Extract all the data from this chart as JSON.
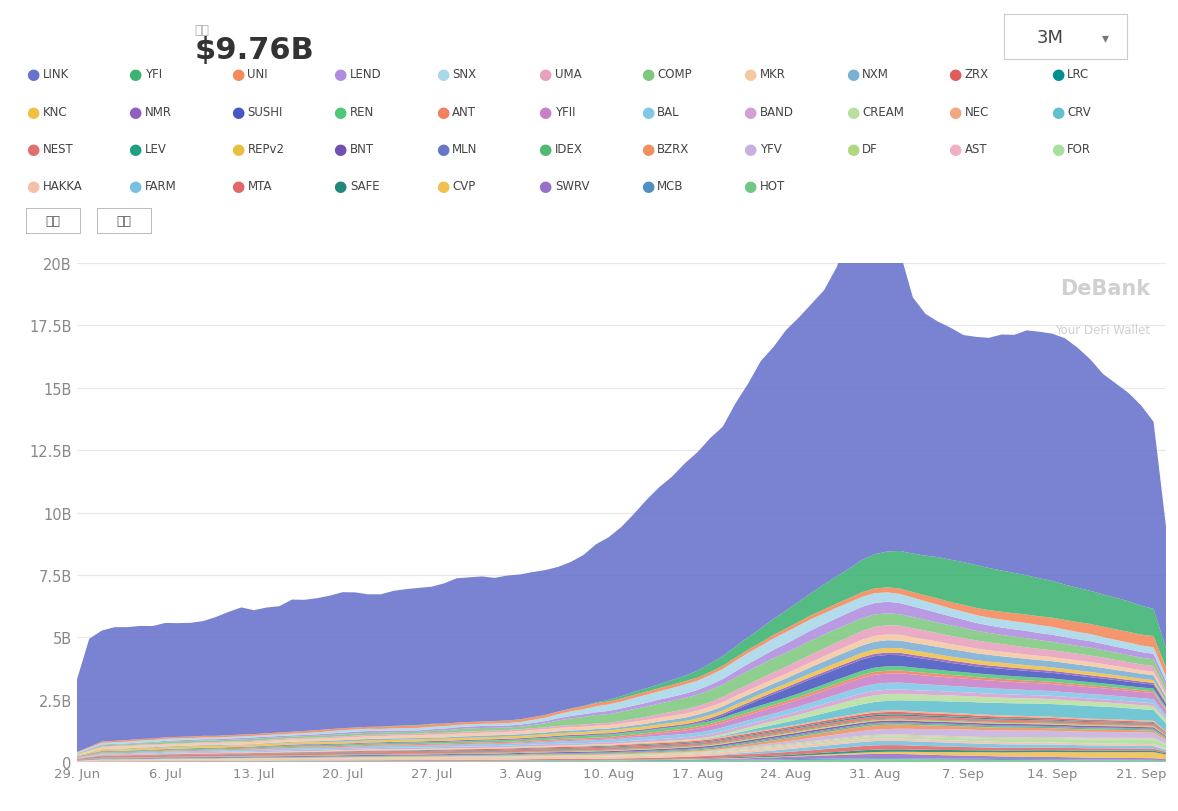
{
  "title_box": "市値",
  "subtitle_label": "市値",
  "subtitle_value": "$9.76B",
  "button_label1": "全选",
  "button_label2": "清空",
  "dropdown_label": "3M",
  "watermark_line1": "DeBank",
  "watermark_line2": "Your DeFi Wallet",
  "bg_color": "#ffffff",
  "ytick_labels": [
    "0",
    "2.5B",
    "5B",
    "7.5B",
    "10B",
    "12.5B",
    "15B",
    "17.5B",
    "20B"
  ],
  "ytick_values": [
    0,
    2.5,
    5.0,
    7.5,
    10.0,
    12.5,
    15.0,
    17.5,
    20.0
  ],
  "xtick_labels": [
    "29. Jun",
    "6. Jul",
    "13. Jul",
    "20. Jul",
    "27. Jul",
    "3. Aug",
    "10. Aug",
    "17. Aug",
    "24. Aug",
    "31. Aug",
    "7. Sep",
    "14. Sep",
    "21. Sep"
  ],
  "xtick_positions": [
    0,
    7,
    14,
    21,
    28,
    35,
    42,
    49,
    56,
    63,
    70,
    77,
    84
  ],
  "legend_items": [
    {
      "name": "LINK",
      "color": "#6672cc"
    },
    {
      "name": "YFI",
      "color": "#3cb371"
    },
    {
      "name": "UNI",
      "color": "#f4895a"
    },
    {
      "name": "LEND",
      "color": "#b08de0"
    },
    {
      "name": "SNX",
      "color": "#a8d8ea"
    },
    {
      "name": "UMA",
      "color": "#e8a0bf"
    },
    {
      "name": "COMP",
      "color": "#7ec87e"
    },
    {
      "name": "MKR",
      "color": "#f4c9a0"
    },
    {
      "name": "NXM",
      "color": "#7bafd4"
    },
    {
      "name": "ZRX",
      "color": "#e05c5c"
    },
    {
      "name": "LRC",
      "color": "#009090"
    },
    {
      "name": "KNC",
      "color": "#f0c040"
    },
    {
      "name": "NMR",
      "color": "#9060c0"
    },
    {
      "name": "SUSHI",
      "color": "#4858c0"
    },
    {
      "name": "REN",
      "color": "#50c878"
    },
    {
      "name": "ANT",
      "color": "#f08060"
    },
    {
      "name": "YFII",
      "color": "#c880c8"
    },
    {
      "name": "BAL",
      "color": "#80c8e8"
    },
    {
      "name": "BAND",
      "color": "#d4a0d4"
    },
    {
      "name": "CREAM",
      "color": "#b8e0a0"
    },
    {
      "name": "NEC",
      "color": "#f0a880"
    },
    {
      "name": "CRV",
      "color": "#60c0d0"
    },
    {
      "name": "NEST",
      "color": "#e07070"
    },
    {
      "name": "LEV",
      "color": "#20a080"
    },
    {
      "name": "REPv2",
      "color": "#e8c040"
    },
    {
      "name": "BNT",
      "color": "#7050b0"
    },
    {
      "name": "MLN",
      "color": "#6878c8"
    },
    {
      "name": "IDEX",
      "color": "#50b870"
    },
    {
      "name": "BZRX",
      "color": "#f09060"
    },
    {
      "name": "YFV",
      "color": "#c8b0e0"
    },
    {
      "name": "DF",
      "color": "#b0d880"
    },
    {
      "name": "AST",
      "color": "#f0b0c0"
    },
    {
      "name": "FOR",
      "color": "#a8e0a0"
    },
    {
      "name": "HAKKA",
      "color": "#f4c0a8"
    },
    {
      "name": "FARM",
      "color": "#78c0e0"
    },
    {
      "name": "MTA",
      "color": "#e06868"
    },
    {
      "name": "SAFE",
      "color": "#208878"
    },
    {
      "name": "CVP",
      "color": "#f0c050"
    },
    {
      "name": "SWRV",
      "color": "#9870c8"
    },
    {
      "name": "MCB",
      "color": "#5090c0"
    },
    {
      "name": "HOT",
      "color": "#70c888"
    }
  ],
  "num_points": 87
}
